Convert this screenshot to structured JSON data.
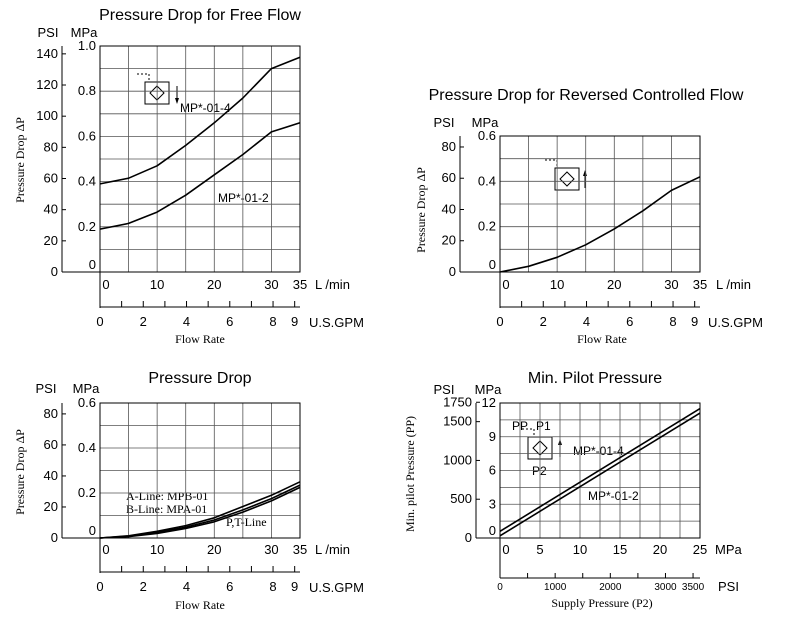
{
  "chart_data": [
    {
      "type": "line",
      "title": "Pressure Drop for Free Flow",
      "ylabel": "Pressure Drop ΔP",
      "xlabel": "Flow Rate",
      "x_unit_primary": "L /min",
      "x_unit_secondary": "U.S.GPM",
      "y_unit_psi": "PSI",
      "y_unit_mpa": "MPa",
      "x_ticks": [
        "0",
        "10",
        "20",
        "30",
        "35"
      ],
      "gpm_ticks": [
        "0",
        "2",
        "4",
        "6",
        "8",
        "9"
      ],
      "psi_ticks": [
        "0",
        "20",
        "40",
        "60",
        "80",
        "100",
        "120",
        "140"
      ],
      "mpa_ticks": [
        "0",
        "0.2",
        "0.4",
        "0.6",
        "0.8",
        "1.0"
      ],
      "xlim": [
        0,
        35
      ],
      "ylim": [
        0,
        1.0
      ],
      "grid": true,
      "series": [
        {
          "name": "MP*-01-4",
          "x": [
            0,
            5,
            10,
            15,
            20,
            25,
            30,
            35
          ],
          "y": [
            0.39,
            0.415,
            0.47,
            0.56,
            0.66,
            0.77,
            0.9,
            0.95
          ]
        },
        {
          "name": "MP*-01-2",
          "x": [
            0,
            5,
            10,
            15,
            20,
            25,
            30,
            35
          ],
          "y": [
            0.19,
            0.215,
            0.265,
            0.34,
            0.43,
            0.52,
            0.62,
            0.66
          ]
        }
      ]
    },
    {
      "type": "line",
      "title": "Pressure Drop for Reversed Controlled Flow",
      "ylabel": "Pressure Drop ΔP",
      "xlabel": "Flow Rate",
      "x_unit_primary": "L /min",
      "x_unit_secondary": "U.S.GPM",
      "y_unit_psi": "PSI",
      "y_unit_mpa": "MPa",
      "x_ticks": [
        "0",
        "10",
        "20",
        "30",
        "35"
      ],
      "gpm_ticks": [
        "0",
        "2",
        "4",
        "6",
        "8",
        "9"
      ],
      "psi_ticks": [
        "0",
        "20",
        "40",
        "60",
        "80"
      ],
      "mpa_ticks": [
        "0",
        "0.2",
        "0.4",
        "0.6"
      ],
      "xlim": [
        0,
        35
      ],
      "ylim": [
        0,
        0.6
      ],
      "grid": true,
      "series": [
        {
          "name": "",
          "x": [
            0,
            5,
            10,
            15,
            20,
            25,
            30,
            35
          ],
          "y": [
            0,
            0.025,
            0.065,
            0.12,
            0.19,
            0.27,
            0.36,
            0.42
          ]
        }
      ]
    },
    {
      "type": "line",
      "title": "Pressure Drop",
      "ylabel": "Pressure Drop ΔP",
      "xlabel": "Flow Rate",
      "x_unit_primary": "L /min",
      "x_unit_secondary": "U.S.GPM",
      "y_unit_psi": "PSI",
      "y_unit_mpa": "MPa",
      "x_ticks": [
        "0",
        "10",
        "20",
        "30",
        "35"
      ],
      "gpm_ticks": [
        "0",
        "2",
        "4",
        "6",
        "8",
        "9"
      ],
      "psi_ticks": [
        "0",
        "20",
        "40",
        "60",
        "80"
      ],
      "mpa_ticks": [
        "0",
        "0.2",
        "0.4",
        "0.6"
      ],
      "xlim": [
        0,
        35
      ],
      "ylim": [
        0,
        0.6
      ],
      "grid": true,
      "series": [
        {
          "name": "A-Line: MPB-01",
          "x": [
            0,
            5,
            10,
            15,
            20,
            25,
            30,
            35
          ],
          "y": [
            0,
            0.01,
            0.03,
            0.055,
            0.09,
            0.14,
            0.19,
            0.25
          ]
        },
        {
          "name": "B-Line: MPA-01",
          "x": [
            0,
            5,
            10,
            15,
            20,
            25,
            30,
            35
          ],
          "y": [
            0,
            0.008,
            0.025,
            0.048,
            0.08,
            0.125,
            0.175,
            0.235
          ]
        },
        {
          "name": "P,T-Line",
          "x": [
            0,
            5,
            10,
            15,
            20,
            25,
            30,
            35
          ],
          "y": [
            0,
            0.006,
            0.02,
            0.042,
            0.072,
            0.115,
            0.165,
            0.225
          ]
        }
      ]
    },
    {
      "type": "line",
      "title": "Min. Pilot Pressure",
      "ylabel": "Min. pilot Pressure (PP)",
      "xlabel": "Supply Pressure (P2)",
      "x_unit_primary": "MPa",
      "x_unit_secondary": "PSI",
      "y_unit_psi": "PSI",
      "y_unit_mpa": "MPa",
      "x_ticks": [
        "0",
        "5",
        "10",
        "15",
        "20",
        "25"
      ],
      "psi_x_ticks": [
        "0",
        "1000",
        "2000",
        "3000",
        "3500"
      ],
      "psi_ticks": [
        "0",
        "500",
        "1000",
        "1500",
        "1750"
      ],
      "mpa_ticks": [
        "0",
        "3",
        "6",
        "9",
        "12"
      ],
      "xlim": [
        0,
        25
      ],
      "ylim": [
        0,
        12
      ],
      "grid": true,
      "series": [
        {
          "name": "MP*-01-4",
          "x": [
            0,
            25
          ],
          "y": [
            0.6,
            11.5
          ]
        },
        {
          "name": "MP*-01-2",
          "x": [
            0,
            25
          ],
          "y": [
            0.2,
            11.1
          ]
        }
      ]
    }
  ],
  "symbol_labels": {
    "pp": "PP",
    "p1": "P1",
    "p2": "P2"
  }
}
